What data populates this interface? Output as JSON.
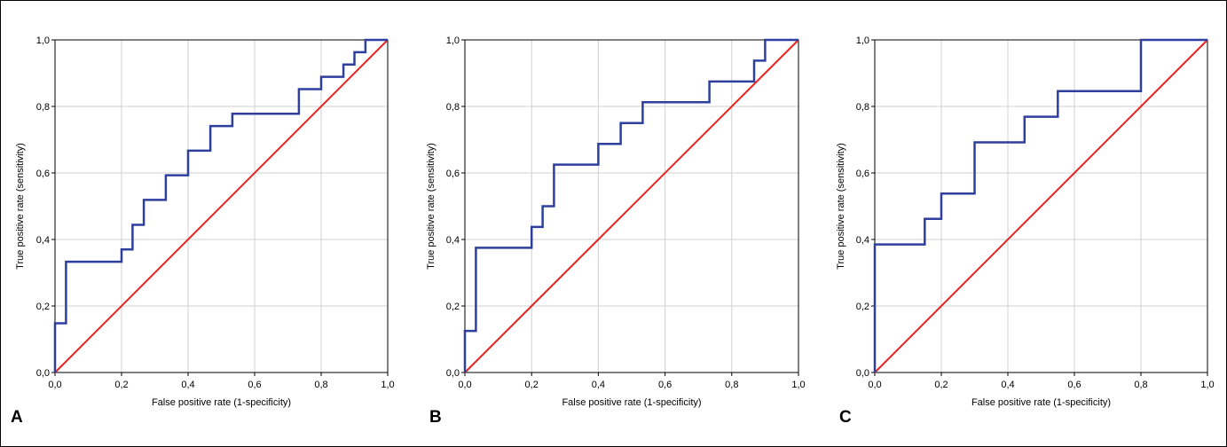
{
  "chart_data": [
    {
      "type": "line",
      "panel_label": "A",
      "xlabel": "False positive rate (1-specificity)",
      "ylabel": "True positive rate (sensitivity)",
      "xlim": [
        0,
        1
      ],
      "ylim": [
        0,
        1
      ],
      "xticks": [
        "0,0",
        "0,2",
        "0,4",
        "0,6",
        "0,8",
        "1,0"
      ],
      "yticks": [
        "0,0",
        "0,2",
        "0,4",
        "0,6",
        "0,8",
        "1,0"
      ],
      "grid": true,
      "series": [
        {
          "kind": "step",
          "color": "#2e3f9e",
          "x": [
            0,
            0,
            0.033,
            0.033,
            0.2,
            0.2,
            0.233,
            0.233,
            0.267,
            0.267,
            0.333,
            0.333,
            0.4,
            0.4,
            0.467,
            0.467,
            0.533,
            0.533,
            0.733,
            0.733,
            0.8,
            0.8,
            0.867,
            0.867,
            0.9,
            0.9,
            0.933,
            0.933,
            1.0
          ],
          "y": [
            0,
            0.148,
            0.148,
            0.333,
            0.333,
            0.37,
            0.37,
            0.444,
            0.444,
            0.519,
            0.519,
            0.593,
            0.593,
            0.667,
            0.667,
            0.741,
            0.741,
            0.778,
            0.778,
            0.852,
            0.852,
            0.889,
            0.889,
            0.926,
            0.926,
            0.963,
            0.963,
            1.0,
            1.0
          ]
        },
        {
          "kind": "reference",
          "color": "#e8231f",
          "x": [
            0,
            1
          ],
          "y": [
            0,
            1
          ]
        }
      ]
    },
    {
      "type": "line",
      "panel_label": "B",
      "xlabel": "False positive rate (1-specificity)",
      "ylabel": "True positive rate (sensitivity)",
      "xlim": [
        0,
        1
      ],
      "ylim": [
        0,
        1
      ],
      "xticks": [
        "0,0",
        "0,2",
        "0,4",
        "0,6",
        "0,8",
        "1,0"
      ],
      "yticks": [
        "0,0",
        "0,2",
        "0,4",
        "0,6",
        "0,8",
        "1,0"
      ],
      "grid": true,
      "series": [
        {
          "kind": "step",
          "color": "#2e3f9e",
          "x": [
            0,
            0,
            0.033,
            0.033,
            0.2,
            0.2,
            0.233,
            0.233,
            0.267,
            0.267,
            0.4,
            0.4,
            0.467,
            0.467,
            0.533,
            0.533,
            0.733,
            0.733,
            0.867,
            0.867,
            0.9,
            0.9,
            1.0
          ],
          "y": [
            0,
            0.125,
            0.125,
            0.375,
            0.375,
            0.4375,
            0.4375,
            0.5,
            0.5,
            0.625,
            0.625,
            0.6875,
            0.6875,
            0.75,
            0.75,
            0.8125,
            0.8125,
            0.875,
            0.875,
            0.9375,
            0.9375,
            1.0,
            1.0
          ]
        },
        {
          "kind": "reference",
          "color": "#e8231f",
          "x": [
            0,
            1
          ],
          "y": [
            0,
            1
          ]
        }
      ]
    },
    {
      "type": "line",
      "panel_label": "C",
      "xlabel": "False positive rate (1-specificity)",
      "ylabel": "True positive rate (sensitivity)",
      "xlim": [
        0,
        1
      ],
      "ylim": [
        0,
        1
      ],
      "xticks": [
        "0,0",
        "0,2",
        "0,4",
        "0,6",
        "0,8",
        "1,0"
      ],
      "yticks": [
        "0,0",
        "0,2",
        "0,4",
        "0,6",
        "0,8",
        "1,0"
      ],
      "grid": true,
      "series": [
        {
          "kind": "step",
          "color": "#2e3f9e",
          "x": [
            0,
            0,
            0.15,
            0.15,
            0.2,
            0.2,
            0.3,
            0.3,
            0.45,
            0.45,
            0.55,
            0.55,
            0.8,
            0.8,
            1.0
          ],
          "y": [
            0,
            0.385,
            0.385,
            0.462,
            0.462,
            0.538,
            0.538,
            0.692,
            0.692,
            0.769,
            0.769,
            0.846,
            0.846,
            1.0,
            1.0
          ]
        },
        {
          "kind": "reference",
          "color": "#e8231f",
          "x": [
            0,
            1
          ],
          "y": [
            0,
            1
          ]
        }
      ]
    }
  ]
}
